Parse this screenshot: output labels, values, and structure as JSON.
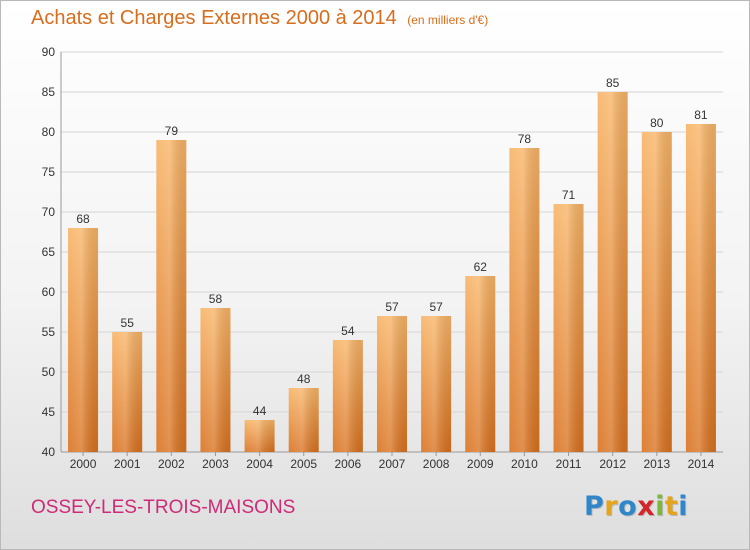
{
  "title": "Achats et Charges Externes 2000 à 2014",
  "unit_label": "(en milliers d'€)",
  "commune": "OSSEY-LES-TROIS-MAISONS",
  "logo": {
    "letters": [
      "P",
      "r",
      "o",
      "x",
      "i",
      "t",
      "i"
    ],
    "colors": [
      "#2f86c9",
      "#e2a51d",
      "#2f86c9",
      "#d2262a",
      "#7cb83a",
      "#e2a51d",
      "#2f86c9"
    ]
  },
  "colors": {
    "bar_light": "#f8b466",
    "bar_dark": "#d9711e",
    "title": "#d86d1d",
    "commune": "#cf2a78",
    "grid": "#d5d5d5",
    "axis_text": "#333333"
  },
  "chart_data": {
    "type": "bar",
    "title": "Achats et Charges Externes 2000 à 2014",
    "xlabel": "",
    "ylabel": "",
    "categories": [
      "2000",
      "2001",
      "2002",
      "2003",
      "2004",
      "2005",
      "2006",
      "2007",
      "2008",
      "2009",
      "2010",
      "2011",
      "2012",
      "2013",
      "2014"
    ],
    "values": [
      68,
      55,
      79,
      58,
      44,
      48,
      54,
      57,
      57,
      62,
      78,
      71,
      85,
      80,
      81
    ],
    "ylim": [
      40,
      90
    ],
    "yticks": [
      40,
      45,
      50,
      55,
      60,
      65,
      70,
      75,
      80,
      85,
      90
    ],
    "grid": true,
    "data_labels": true
  }
}
